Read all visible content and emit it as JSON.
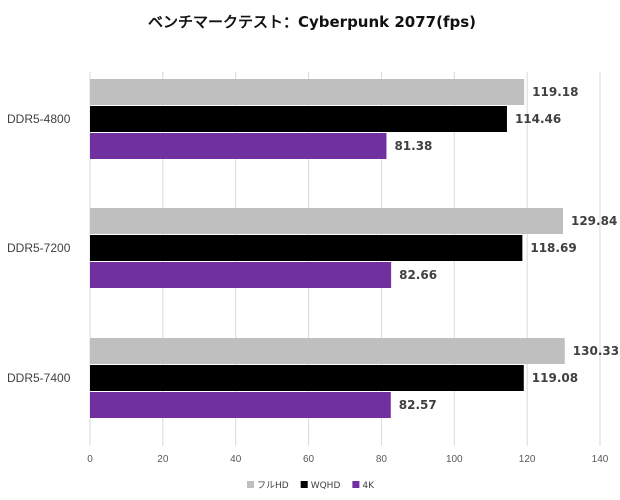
{
  "chart_data": {
    "type": "bar",
    "orientation": "horizontal",
    "title": "ベンチマークテスト：Cyberpunk 2077(fps)",
    "categories": [
      "DDR5-4800",
      "DDR5-7200",
      "DDR5-7400"
    ],
    "series": [
      {
        "name": "フルHD",
        "color": "#bfbfbf",
        "values": [
          119.18,
          129.84,
          130.33
        ]
      },
      {
        "name": "WQHD",
        "color": "#000000",
        "values": [
          114.46,
          118.69,
          119.08
        ]
      },
      {
        "name": "4K",
        "color": "#7030a0",
        "values": [
          81.38,
          82.66,
          82.57
        ]
      }
    ],
    "xlim": [
      0,
      140
    ],
    "xticks": [
      0,
      20,
      40,
      60,
      80,
      100,
      120,
      140
    ],
    "grid": "vertical",
    "legend": "bottom"
  }
}
